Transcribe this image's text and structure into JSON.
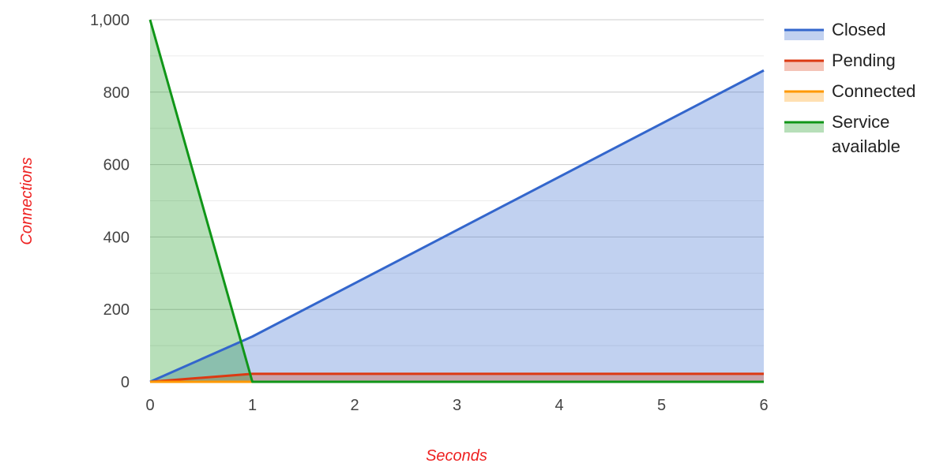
{
  "chart_data": {
    "type": "area",
    "xlabel": "Seconds",
    "ylabel": "Connections",
    "axis_title_color": "#ee2222",
    "xlim": [
      0,
      6
    ],
    "ylim": [
      0,
      1000
    ],
    "x_ticks": [
      0,
      1,
      2,
      3,
      4,
      5,
      6
    ],
    "y_ticks": [
      0,
      200,
      400,
      600,
      800,
      1000
    ],
    "y_tick_labels": [
      "0",
      "200",
      "400",
      "600",
      "800",
      "1,000"
    ],
    "grid": true,
    "legend_position": "right",
    "series": [
      {
        "name": "Closed",
        "color": "#3366cc",
        "points": [
          [
            0,
            0
          ],
          [
            1,
            125
          ],
          [
            6,
            860
          ]
        ]
      },
      {
        "name": "Pending",
        "color": "#dc3912",
        "points": [
          [
            0,
            0
          ],
          [
            1,
            22
          ],
          [
            6,
            22
          ]
        ]
      },
      {
        "name": "Connected",
        "color": "#ff9900",
        "points": [
          [
            0,
            0
          ],
          [
            1,
            0
          ],
          [
            6,
            0
          ]
        ]
      },
      {
        "name": "Service",
        "name_line2": "available",
        "color": "#109618",
        "points": [
          [
            0,
            1000
          ],
          [
            1,
            0
          ],
          [
            6,
            0
          ]
        ]
      }
    ]
  }
}
